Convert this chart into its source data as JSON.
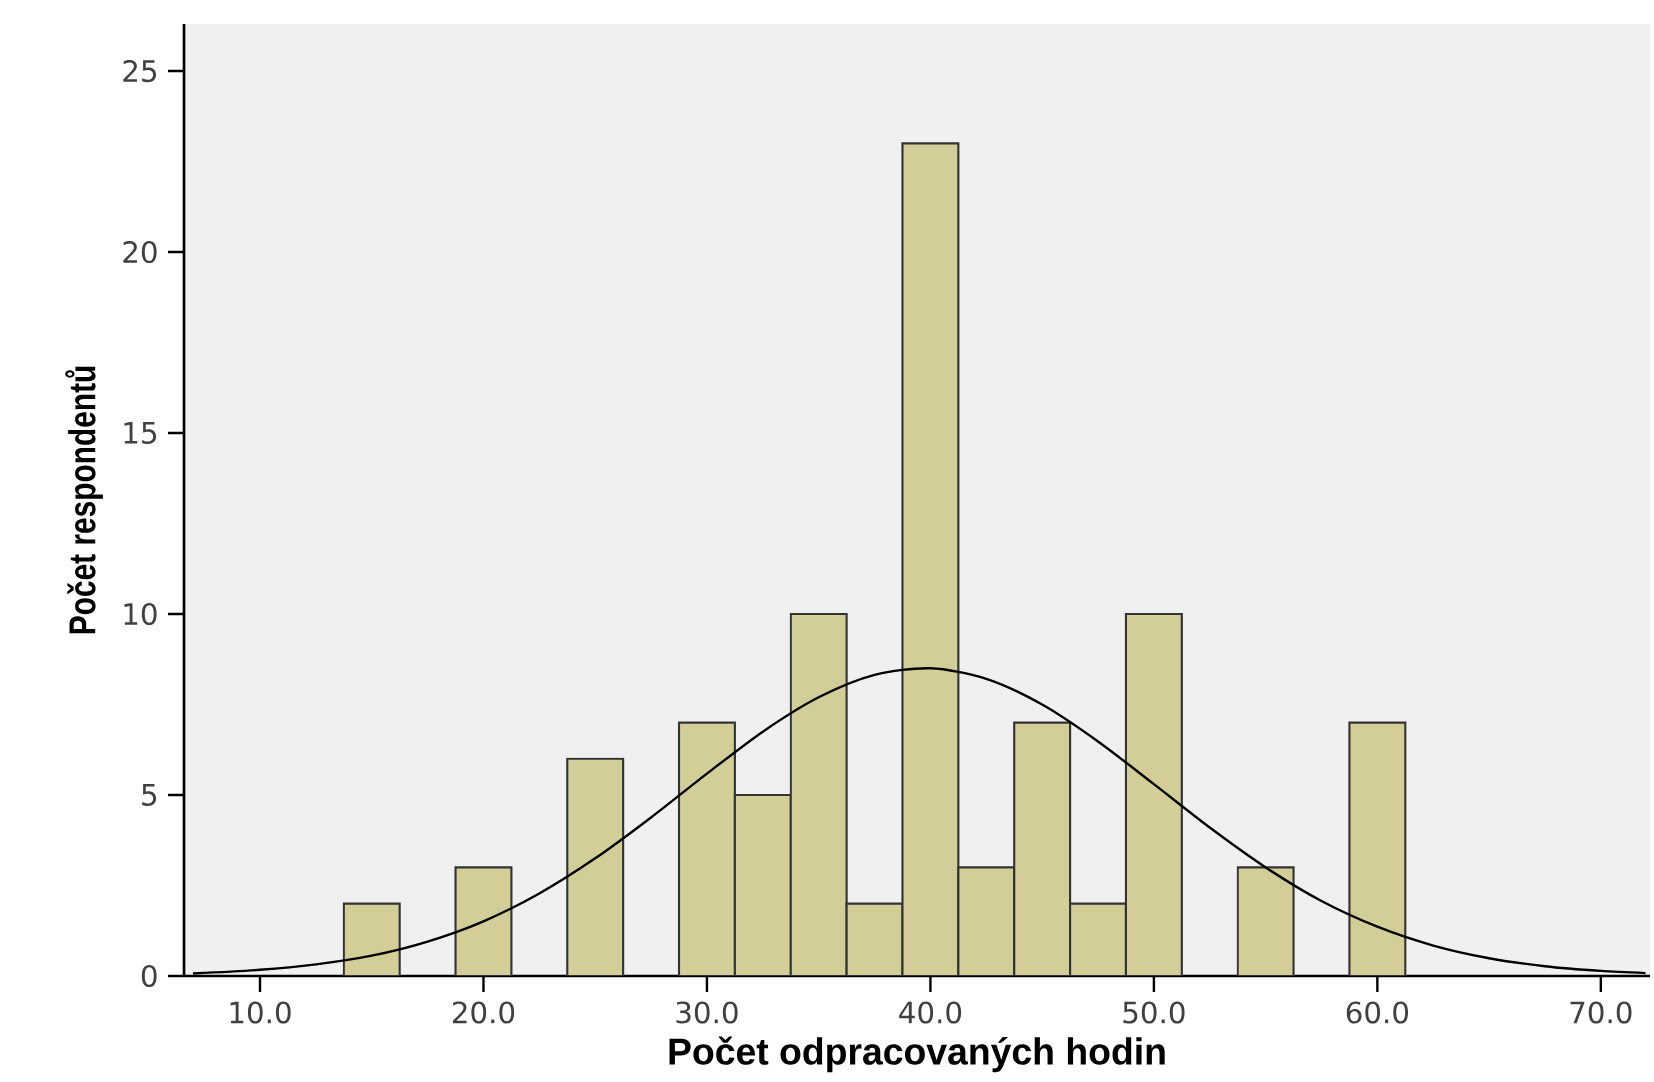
{
  "chart_data": {
    "type": "histogram",
    "xlabel": "Počet odpracovaných hodin",
    "ylabel": "Počet respondentů",
    "xlim": [
      6.6,
      72.2
    ],
    "ylim": [
      0,
      26.3
    ],
    "xticks": [
      {
        "value": 10,
        "label": "10.0"
      },
      {
        "value": 20,
        "label": "20.0"
      },
      {
        "value": 30,
        "label": "30.0"
      },
      {
        "value": 40,
        "label": "40.0"
      },
      {
        "value": 50,
        "label": "50.0"
      },
      {
        "value": 60,
        "label": "60.0"
      },
      {
        "value": 70,
        "label": "70.0"
      }
    ],
    "yticks": [
      0,
      5,
      10,
      15,
      20,
      25
    ],
    "series": [
      {
        "color": "#d3ce97",
        "bins": [
          13.75,
          16.25,
          18.75,
          21.25,
          23.75,
          26.25,
          28.75,
          31.25,
          33.75,
          36.25,
          38.75,
          41.25,
          43.75,
          46.25,
          48.75,
          51.25,
          53.75,
          56.25,
          58.75,
          61.25
        ],
        "values": [
          2,
          0,
          3,
          0,
          6,
          0,
          7,
          5,
          10,
          2,
          23,
          3,
          7,
          2,
          10,
          0,
          3,
          0,
          7
        ]
      },
      {
        "type": "line",
        "color": "#000000",
        "x": [
          7,
          10,
          12.5,
          15,
          17.5,
          20,
          22.5,
          25,
          27.5,
          30,
          32.5,
          35,
          37.5,
          40,
          42.5,
          45,
          47.5,
          50,
          52.5,
          55,
          57.5,
          60,
          62.5,
          65,
          67.5,
          70,
          72
        ],
        "values": [
          0.07,
          0.17,
          0.32,
          0.56,
          0.95,
          1.51,
          2.28,
          3.25,
          4.38,
          5.59,
          6.75,
          7.7,
          8.32,
          8.5,
          8.21,
          7.5,
          6.48,
          5.3,
          4.1,
          3.0,
          2.07,
          1.36,
          0.84,
          0.49,
          0.27,
          0.14,
          0.08
        ]
      }
    ]
  }
}
